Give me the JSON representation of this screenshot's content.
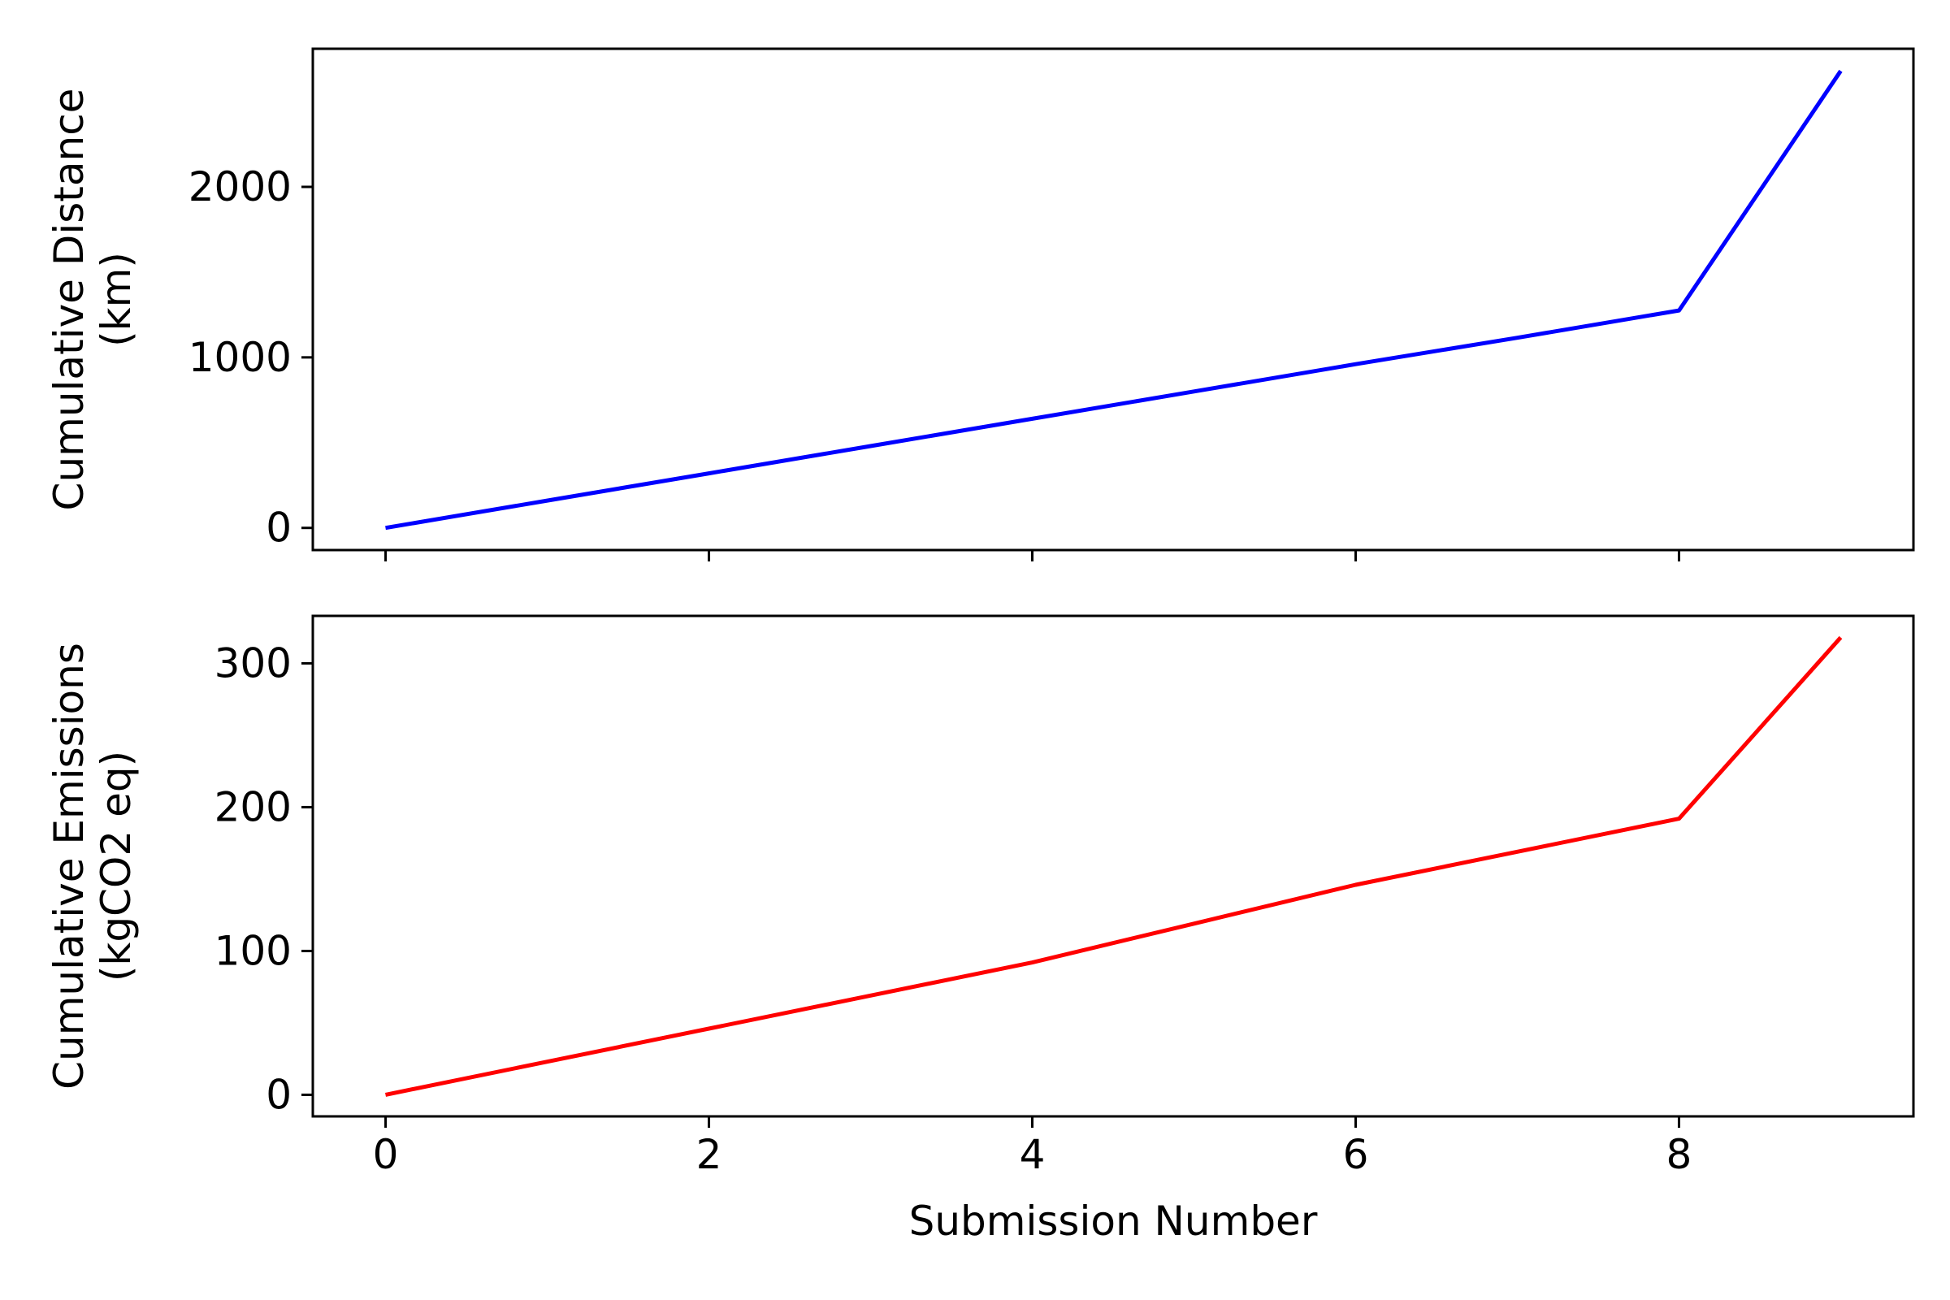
{
  "chart_data": [
    {
      "type": "line",
      "ylabel": [
        "Cumulative Distance",
        "(km)"
      ],
      "xlabel": "",
      "xlim": [
        -0.45,
        9.45
      ],
      "ylim": [
        -130,
        2810
      ],
      "xticks": [
        0,
        2,
        4,
        6,
        8
      ],
      "xtick_labels_visible": false,
      "yticks": [
        0,
        1000,
        2000
      ],
      "ytick_labels": [
        "0",
        "1000",
        "2000"
      ],
      "grid": false,
      "series": [
        {
          "color": "#0000ff",
          "x": [
            0,
            1,
            2,
            3,
            4,
            5,
            6,
            7,
            8,
            9
          ],
          "values": [
            0,
            160,
            320,
            480,
            640,
            800,
            960,
            1115,
            1275,
            2680
          ]
        }
      ]
    },
    {
      "type": "line",
      "ylabel": [
        "Cumulative Emissions",
        "(kgCO2 eq)"
      ],
      "xlabel": "Submission Number",
      "xlim": [
        -0.45,
        9.45
      ],
      "ylim": [
        -15,
        333
      ],
      "xticks": [
        0,
        2,
        4,
        6,
        8
      ],
      "xtick_labels": [
        "0",
        "2",
        "4",
        "6",
        "8"
      ],
      "xtick_labels_visible": true,
      "yticks": [
        0,
        100,
        200,
        300
      ],
      "ytick_labels": [
        "0",
        "100",
        "200",
        "300"
      ],
      "grid": false,
      "series": [
        {
          "color": "#ff0000",
          "x": [
            0,
            1,
            2,
            3,
            4,
            5,
            6,
            7,
            8,
            9
          ],
          "values": [
            0,
            23,
            46,
            69,
            92,
            119,
            146,
            169,
            192,
            318
          ]
        }
      ]
    }
  ]
}
